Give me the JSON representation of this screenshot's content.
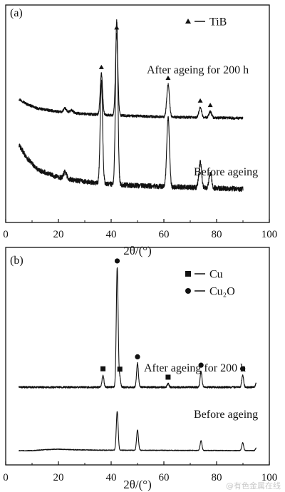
{
  "chart_data": [
    {
      "type": "line",
      "panel_label": "(a)",
      "xlabel": "2θ/(°)",
      "ylabel": "",
      "xlim": [
        0,
        100
      ],
      "x_ticks": [
        "0",
        "20",
        "40",
        "60",
        "80",
        "100"
      ],
      "grid": false,
      "legend": {
        "position": "top-right",
        "entries": [
          {
            "marker": "triangle",
            "label": "TiB"
          }
        ]
      },
      "series": [
        {
          "annotation": "After ageing for 200 h",
          "x_range": [
            5,
            90
          ],
          "baseline": [
            [
              5,
              0.26
            ],
            [
              8,
              0.2
            ],
            [
              12,
              0.15
            ],
            [
              20,
              0.11
            ],
            [
              30,
              0.085
            ],
            [
              40,
              0.07
            ],
            [
              50,
              0.06
            ],
            [
              60,
              0.05
            ],
            [
              70,
              0.045
            ],
            [
              80,
              0.04
            ],
            [
              90,
              0.035
            ]
          ],
          "peaks": [
            {
              "x": 22.5,
              "height": 0.045,
              "width": 0.6
            },
            {
              "x": 25.0,
              "height": 0.03,
              "width": 0.6
            },
            {
              "x": 36.3,
              "height": 0.48,
              "width": 0.45
            },
            {
              "x": 42.1,
              "height": 0.95,
              "width": 0.45
            },
            {
              "x": 61.6,
              "height": 0.38,
              "width": 0.5
            },
            {
              "x": 73.8,
              "height": 0.12,
              "width": 0.5
            },
            {
              "x": 77.6,
              "height": 0.07,
              "width": 0.5
            }
          ],
          "markers": [
            {
              "x": 36.3,
              "symbol": "triangle"
            },
            {
              "x": 42.1,
              "symbol": "triangle"
            },
            {
              "x": 61.6,
              "symbol": "triangle"
            },
            {
              "x": 73.8,
              "symbol": "triangle"
            },
            {
              "x": 77.6,
              "symbol": "triangle"
            }
          ]
        },
        {
          "annotation": "Before ageing",
          "x_range": [
            5,
            90
          ],
          "baseline": [
            [
              5,
              0.3
            ],
            [
              8,
              0.22
            ],
            [
              12,
              0.15
            ],
            [
              20,
              0.1
            ],
            [
              30,
              0.075
            ],
            [
              40,
              0.06
            ],
            [
              50,
              0.05
            ],
            [
              60,
              0.045
            ],
            [
              70,
              0.04
            ],
            [
              80,
              0.035
            ],
            [
              90,
              0.03
            ]
          ],
          "peaks": [
            {
              "x": 22.5,
              "height": 0.04,
              "width": 0.6
            },
            {
              "x": 36.3,
              "height": 0.62,
              "width": 0.45
            },
            {
              "x": 42.1,
              "height": 1.0,
              "width": 0.45
            },
            {
              "x": 61.6,
              "height": 0.42,
              "width": 0.5
            },
            {
              "x": 73.8,
              "height": 0.16,
              "width": 0.5
            },
            {
              "x": 77.6,
              "height": 0.09,
              "width": 0.5
            }
          ],
          "markers": []
        }
      ]
    },
    {
      "type": "line",
      "panel_label": "(b)",
      "xlabel": "2θ/(°)",
      "ylabel": "",
      "xlim": [
        0,
        100
      ],
      "x_ticks": [
        "0",
        "20",
        "40",
        "60",
        "80",
        "100"
      ],
      "grid": false,
      "legend": {
        "position": "top-right",
        "entries": [
          {
            "marker": "square",
            "label": "Cu"
          },
          {
            "marker": "circle",
            "label": "Cu₂O"
          }
        ]
      },
      "series": [
        {
          "annotation": "After ageing for 200 h",
          "x_range": [
            5,
            95
          ],
          "baseline": [
            [
              5,
              0.0
            ],
            [
              95,
              0.0
            ]
          ],
          "peaks": [
            {
              "x": 36.9,
              "height": 0.1,
              "width": 0.35
            },
            {
              "x": 42.3,
              "height": 1.0,
              "width": 0.35
            },
            {
              "x": 43.3,
              "height": 0.08,
              "width": 0.3
            },
            {
              "x": 50.0,
              "height": 0.2,
              "width": 0.35
            },
            {
              "x": 61.6,
              "height": 0.03,
              "width": 0.35
            },
            {
              "x": 74.1,
              "height": 0.13,
              "width": 0.35
            },
            {
              "x": 89.9,
              "height": 0.1,
              "width": 0.35
            },
            {
              "x": 95.0,
              "height": 0.03,
              "width": 0.3
            }
          ],
          "markers": [
            {
              "x": 36.9,
              "symbol": "square"
            },
            {
              "x": 42.3,
              "symbol": "circle"
            },
            {
              "x": 43.3,
              "symbol": "square"
            },
            {
              "x": 50.0,
              "symbol": "circle"
            },
            {
              "x": 61.6,
              "symbol": "square"
            },
            {
              "x": 74.1,
              "symbol": "circle"
            },
            {
              "x": 89.9,
              "symbol": "circle"
            }
          ]
        },
        {
          "annotation": "Before ageing",
          "x_range": [
            5,
            95
          ],
          "baseline": [
            [
              5,
              0.0
            ],
            [
              10,
              0.0
            ],
            [
              15,
              0.02
            ],
            [
              20,
              0.03
            ],
            [
              25,
              0.02
            ],
            [
              35,
              0.01
            ],
            [
              95,
              0.0
            ]
          ],
          "peaks": [
            {
              "x": 42.3,
              "height": 0.8,
              "width": 0.35
            },
            {
              "x": 50.0,
              "height": 0.42,
              "width": 0.35
            },
            {
              "x": 74.1,
              "height": 0.2,
              "width": 0.35
            },
            {
              "x": 89.9,
              "height": 0.16,
              "width": 0.35
            },
            {
              "x": 95.0,
              "height": 0.05,
              "width": 0.3
            }
          ],
          "markers": []
        }
      ]
    }
  ],
  "watermark": "@有色金属在线"
}
